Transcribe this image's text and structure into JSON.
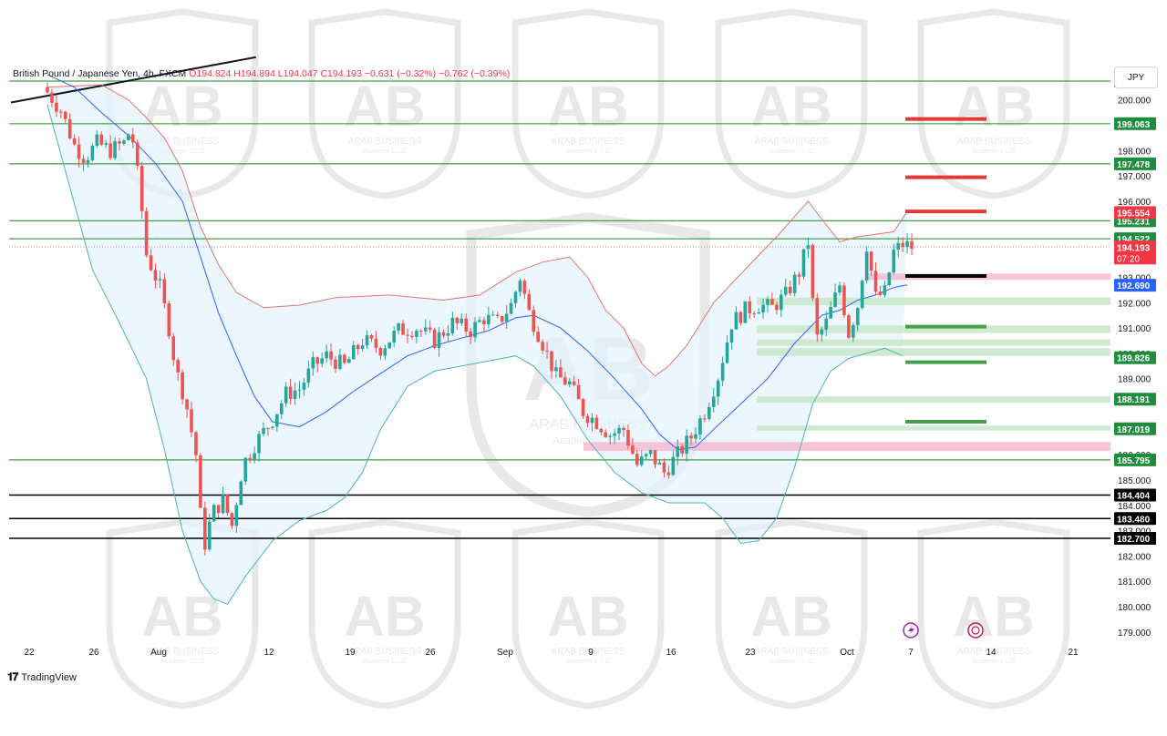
{
  "header": {
    "symbol": "British Pound / Japanese Yen, 4h, FXCM",
    "open": "O194.824",
    "high": "H194.894",
    "low": "L194.047",
    "close": "C194.193",
    "change": "−0.631 (−0.32%)",
    "change2": "−0.762 (−0.39%)"
  },
  "currency": "JPY",
  "brand": "TradingView",
  "watermark": {
    "text": "ARAB BUSINESS",
    "sub": "Academy L.L.C"
  },
  "colors": {
    "up": "#26a69a",
    "down": "#ef5350",
    "support_line": "#43a047",
    "black_line": "#000000",
    "bb_upper": "#e57373",
    "bb_lower": "#4db6ac",
    "bb_basis": "#2962ff",
    "bb_fill": "#e3f2fd",
    "price_label": "#f23645",
    "green_label": "#1e8e3e",
    "blue_label": "#2962ff"
  },
  "chart_data": {
    "type": "candlestick",
    "title": "British Pound / Japanese Yen, 4h, FXCM",
    "y_axis": {
      "range": [
        178.6,
        201.5
      ],
      "ticks": [
        "200.000",
        "198.000",
        "197.000",
        "196.000",
        "193.000",
        "192.000",
        "191.000",
        "190.000",
        "189.000",
        "186.000",
        "185.000",
        "184.000",
        "183.000",
        "182.000",
        "181.000",
        "180.000",
        "179.000"
      ]
    },
    "x_axis": {
      "ticks": [
        "22",
        "26",
        "Aug",
        "12",
        "19",
        "26",
        "Sep",
        "9",
        "16",
        "23",
        "Oct",
        "7",
        "14",
        "21"
      ]
    },
    "horizontal_levels": [
      {
        "label": "200.744",
        "value": 200.744,
        "kind": "support"
      },
      {
        "label": "199.063",
        "value": 199.063,
        "kind": "support"
      },
      {
        "label": "197.478",
        "value": 197.478,
        "kind": "support"
      },
      {
        "label": "195.231",
        "value": 195.231,
        "kind": "support"
      },
      {
        "label": "194.522",
        "value": 194.522,
        "kind": "support"
      },
      {
        "label": "185.795",
        "value": 185.795,
        "kind": "support"
      },
      {
        "label": "184.404",
        "value": 184.404,
        "kind": "black"
      },
      {
        "label": "183.480",
        "value": 183.48,
        "kind": "black"
      },
      {
        "label": "182.700",
        "value": 182.7,
        "kind": "black"
      }
    ],
    "zone_labels": [
      {
        "label": "195.554",
        "value": 195.554,
        "kind": "red"
      },
      {
        "label": "194.193",
        "value": 194.193,
        "kind": "price",
        "sub": "07:20"
      },
      {
        "label": "192.690",
        "value": 192.69,
        "kind": "blue"
      },
      {
        "label": "189.826",
        "value": 189.826,
        "kind": "green"
      },
      {
        "label": "188.191",
        "value": 188.191,
        "kind": "green"
      },
      {
        "label": "187.019",
        "value": 187.019,
        "kind": "green"
      }
    ],
    "green_zones": [
      {
        "low": 191.9,
        "high": 192.2
      },
      {
        "low": 190.8,
        "high": 191.1
      },
      {
        "low": 190.3,
        "high": 190.55
      },
      {
        "low": 189.9,
        "high": 190.2
      },
      {
        "low": 188.05,
        "high": 188.3
      },
      {
        "low": 186.95,
        "high": 187.15
      }
    ],
    "red_zones": [
      {
        "low": 192.9,
        "high": 193.15
      },
      {
        "low": 186.15,
        "high": 186.5
      }
    ],
    "target_marks": [
      {
        "value": 199.25,
        "color": "red"
      },
      {
        "value": 196.95,
        "color": "red"
      },
      {
        "value": 195.6,
        "color": "red"
      },
      {
        "value": 193.05,
        "color": "black"
      },
      {
        "value": 191.05,
        "color": "green"
      },
      {
        "value": 189.65,
        "color": "green"
      },
      {
        "value": 187.3,
        "color": "green"
      }
    ],
    "closes": [
      [
        0,
        200.3
      ],
      [
        1.5,
        199.6
      ],
      [
        3,
        198.2
      ],
      [
        4.2,
        197.7
      ],
      [
        5.5,
        198.3
      ],
      [
        7,
        198.0
      ],
      [
        8.5,
        198.3
      ],
      [
        9.3,
        198.9
      ],
      [
        10.3,
        196.3
      ],
      [
        11,
        193.9
      ],
      [
        12.5,
        192.6
      ],
      [
        13.5,
        191.0
      ],
      [
        14.3,
        189.3
      ],
      [
        15.3,
        188.2
      ],
      [
        16.5,
        186.0
      ],
      [
        17.3,
        182.2
      ],
      [
        18.3,
        183.7
      ],
      [
        19.5,
        184.2
      ],
      [
        20.5,
        183.2
      ],
      [
        21.7,
        185.6
      ],
      [
        23,
        186.4
      ],
      [
        25,
        187.4
      ],
      [
        26.5,
        188.4
      ],
      [
        28,
        188.6
      ],
      [
        29.5,
        189.5
      ],
      [
        31,
        189.9
      ],
      [
        33,
        189.5
      ],
      [
        35,
        190.5
      ],
      [
        37,
        190.2
      ],
      [
        39,
        190.9
      ],
      [
        41,
        191.0
      ],
      [
        43,
        190.5
      ],
      [
        45,
        191.2
      ],
      [
        47,
        190.9
      ],
      [
        48.5,
        191.4
      ],
      [
        50,
        191.2
      ],
      [
        51.5,
        191.9
      ],
      [
        52.5,
        193.0
      ],
      [
        53.5,
        191.6
      ],
      [
        55,
        190.4
      ],
      [
        56.5,
        189.1
      ],
      [
        58,
        188.8
      ],
      [
        59.5,
        187.7
      ],
      [
        61,
        187.3
      ],
      [
        62.5,
        186.8
      ],
      [
        64,
        187.0
      ],
      [
        65.5,
        185.6
      ],
      [
        67,
        186.0
      ],
      [
        68.5,
        185.3
      ],
      [
        70,
        186.0
      ],
      [
        71.5,
        186.7
      ],
      [
        73,
        187.7
      ],
      [
        74.5,
        189.1
      ],
      [
        76,
        191.2
      ],
      [
        77.5,
        191.7
      ],
      [
        79,
        191.9
      ],
      [
        80.5,
        191.8
      ],
      [
        82,
        192.3
      ],
      [
        83.5,
        193.2
      ],
      [
        84.5,
        194.4
      ],
      [
        85,
        192.0
      ],
      [
        85.5,
        190.6
      ],
      [
        86.5,
        191.2
      ],
      [
        88,
        192.7
      ],
      [
        89,
        190.8
      ],
      [
        90,
        191.9
      ],
      [
        91,
        194.3
      ],
      [
        92,
        192.2
      ],
      [
        93,
        192.4
      ],
      [
        94,
        194.0
      ],
      [
        95,
        194.3
      ],
      [
        96,
        194.2
      ]
    ],
    "bb_upper": [
      [
        0,
        200.5
      ],
      [
        6,
        200.6
      ],
      [
        9,
        200.0
      ],
      [
        11,
        199.3
      ],
      [
        13,
        198.5
      ],
      [
        15,
        197.2
      ],
      [
        17,
        195.0
      ],
      [
        19,
        193.5
      ],
      [
        21,
        192.4
      ],
      [
        24,
        191.8
      ],
      [
        28,
        191.9
      ],
      [
        32,
        192.2
      ],
      [
        38,
        192.3
      ],
      [
        44,
        192.1
      ],
      [
        48,
        192.3
      ],
      [
        52,
        193.2
      ],
      [
        55,
        193.6
      ],
      [
        58,
        193.8
      ],
      [
        60,
        193.0
      ],
      [
        62,
        191.7
      ],
      [
        64,
        191.0
      ],
      [
        66,
        189.6
      ],
      [
        67.5,
        189.1
      ],
      [
        69,
        189.5
      ],
      [
        71,
        190.3
      ],
      [
        74,
        192.0
      ],
      [
        78,
        193.5
      ],
      [
        81,
        194.6
      ],
      [
        84.5,
        196.0
      ],
      [
        86,
        195.3
      ],
      [
        88,
        194.4
      ],
      [
        90,
        194.6
      ],
      [
        92,
        194.7
      ],
      [
        94,
        194.8
      ],
      [
        95.5,
        195.6
      ]
    ],
    "bb_lower": [
      [
        0,
        199.8
      ],
      [
        5,
        193.3
      ],
      [
        8,
        191.2
      ],
      [
        11,
        189.0
      ],
      [
        13,
        186.2
      ],
      [
        15,
        183.0
      ],
      [
        17,
        181.0
      ],
      [
        18.5,
        180.3
      ],
      [
        20,
        180.1
      ],
      [
        22,
        181.2
      ],
      [
        25,
        182.6
      ],
      [
        28,
        183.4
      ],
      [
        31,
        183.8
      ],
      [
        33,
        184.3
      ],
      [
        35,
        185.3
      ],
      [
        37,
        187.0
      ],
      [
        40,
        188.7
      ],
      [
        43,
        189.3
      ],
      [
        46,
        189.5
      ],
      [
        49,
        189.7
      ],
      [
        52,
        189.9
      ],
      [
        54,
        189.5
      ],
      [
        57,
        188.3
      ],
      [
        60,
        186.6
      ],
      [
        63,
        185.3
      ],
      [
        66,
        184.5
      ],
      [
        69,
        184.1
      ],
      [
        71,
        184.1
      ],
      [
        73,
        184.1
      ],
      [
        75,
        183.5
      ],
      [
        77,
        182.5
      ],
      [
        79,
        182.6
      ],
      [
        81,
        183.5
      ],
      [
        83,
        185.5
      ],
      [
        85,
        188.0
      ],
      [
        87,
        189.3
      ],
      [
        89,
        189.8
      ],
      [
        91,
        190.0
      ],
      [
        93,
        190.2
      ],
      [
        95,
        189.9
      ]
    ],
    "bb_basis": [
      [
        0,
        201.0
      ],
      [
        3,
        200.5
      ],
      [
        6,
        199.5
      ],
      [
        9,
        198.6
      ],
      [
        12,
        197.5
      ],
      [
        15,
        196.0
      ],
      [
        17,
        193.8
      ],
      [
        19,
        191.6
      ],
      [
        21,
        189.9
      ],
      [
        23,
        188.3
      ],
      [
        25,
        187.3
      ],
      [
        28,
        187.1
      ],
      [
        31,
        187.7
      ],
      [
        34,
        188.5
      ],
      [
        37,
        189.2
      ],
      [
        40,
        189.9
      ],
      [
        43,
        190.3
      ],
      [
        46,
        190.6
      ],
      [
        49,
        190.9
      ],
      [
        52,
        191.4
      ],
      [
        54,
        191.5
      ],
      [
        57,
        191.0
      ],
      [
        60,
        190.1
      ],
      [
        63,
        189.0
      ],
      [
        66,
        187.8
      ],
      [
        68,
        186.8
      ],
      [
        70,
        186.2
      ],
      [
        72,
        186.3
      ],
      [
        74,
        187.0
      ],
      [
        77,
        188.0
      ],
      [
        80,
        189.0
      ],
      [
        83,
        190.4
      ],
      [
        86,
        191.5
      ],
      [
        88,
        191.7
      ],
      [
        90,
        192.1
      ],
      [
        92,
        192.3
      ],
      [
        94,
        192.6
      ],
      [
        95.5,
        192.7
      ]
    ],
    "trendline": {
      "from": [
        -1,
        199.9
      ],
      "to": [
        10,
        201.4
      ]
    }
  }
}
